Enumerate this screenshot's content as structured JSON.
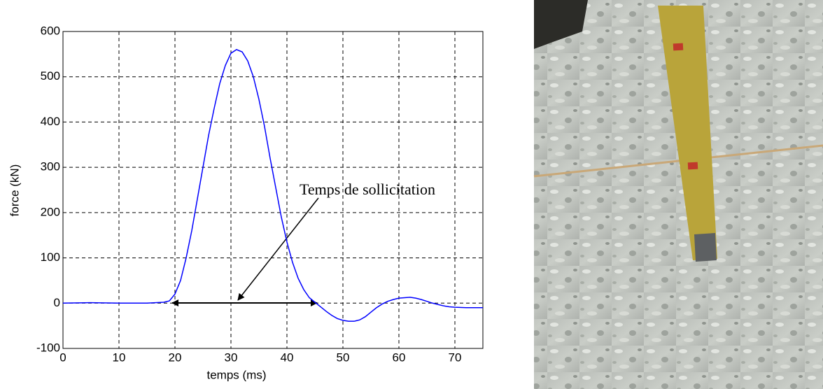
{
  "chart_data": {
    "type": "line",
    "x_label": "temps (ms)",
    "y_label": "force (kN)",
    "annotation": "Temps de sollicitation",
    "xlim": [
      0,
      75
    ],
    "xticks": [
      0,
      10,
      20,
      30,
      40,
      50,
      60,
      70
    ],
    "ylim": [
      -100,
      600
    ],
    "yticks": [
      -100,
      0,
      100,
      200,
      300,
      400,
      500,
      600
    ],
    "grid": true,
    "x": [
      0,
      5,
      10,
      15,
      18,
      19,
      20,
      21,
      22,
      23,
      24,
      25,
      26,
      27,
      28,
      29,
      30,
      31,
      32,
      33,
      34,
      35,
      36,
      37,
      38,
      39,
      40,
      41,
      42,
      43,
      44,
      45,
      46,
      47,
      48,
      49,
      50,
      51,
      52,
      53,
      54,
      55,
      56,
      57,
      58,
      59,
      60,
      61,
      62,
      63,
      64,
      65,
      66,
      67,
      68,
      69,
      70,
      72,
      75
    ],
    "series": [
      {
        "color": "#0000ff",
        "values": [
          0,
          1,
          0,
          0,
          2,
          5,
          20,
          50,
          100,
          160,
          230,
          300,
          370,
          430,
          485,
          525,
          552,
          560,
          555,
          535,
          500,
          450,
          390,
          320,
          255,
          190,
          135,
          90,
          55,
          30,
          12,
          2,
          -8,
          -18,
          -27,
          -34,
          -38,
          -40,
          -40,
          -37,
          -30,
          -20,
          -10,
          -2,
          4,
          8,
          11,
          12,
          13,
          11,
          8,
          4,
          0,
          -3,
          -6,
          -8,
          -9,
          -10,
          -10
        ]
      }
    ]
  }
}
